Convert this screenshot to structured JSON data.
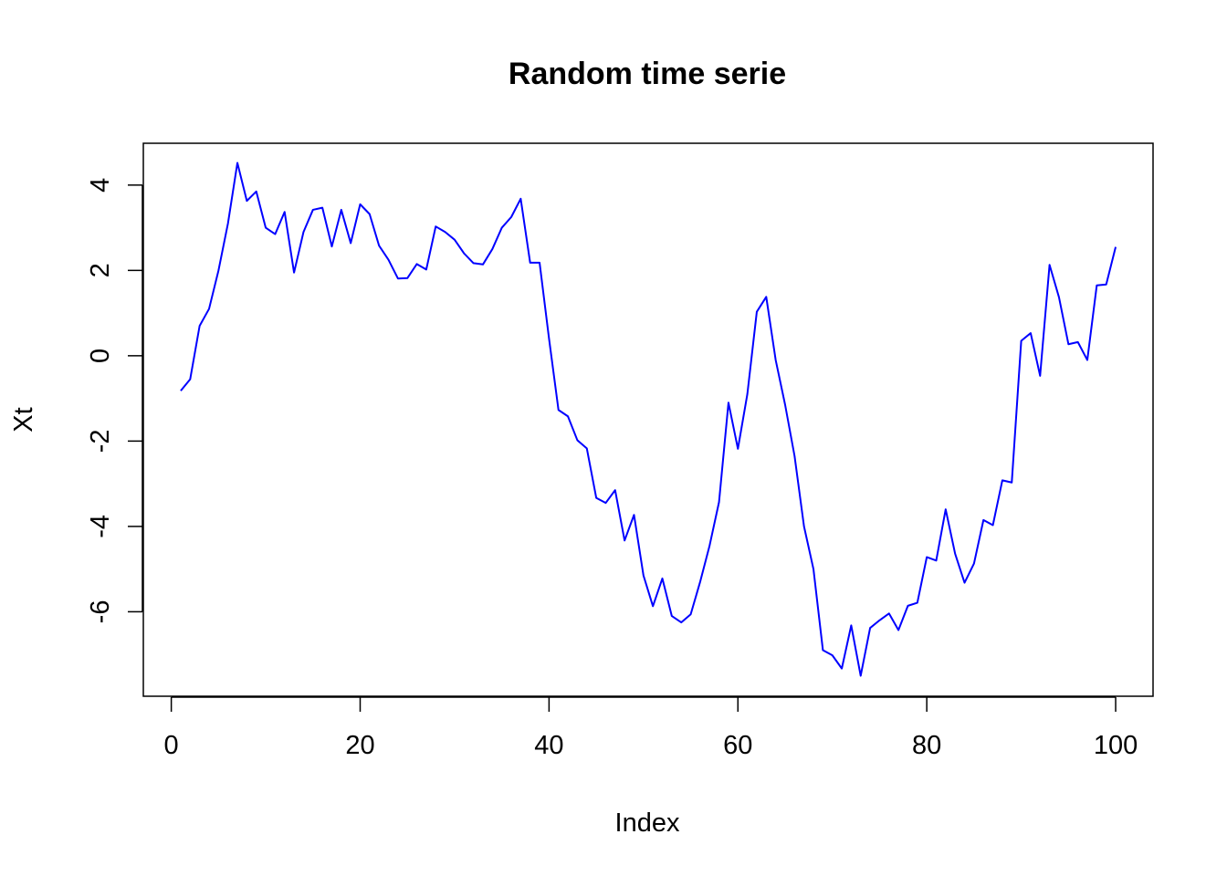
{
  "chart_data": {
    "type": "line",
    "title": "Random time serie",
    "xlabel": "Index",
    "ylabel": "Xt",
    "xlim": [
      1,
      100
    ],
    "ylim": [
      -7.5,
      4.5
    ],
    "x_ticks": [
      0,
      20,
      40,
      60,
      80,
      100
    ],
    "y_ticks": [
      -6,
      -4,
      -2,
      0,
      2,
      4
    ],
    "grid": false,
    "legend": "none",
    "series": [
      {
        "color": "#0000ff",
        "x": [
          1,
          2,
          3,
          4,
          5,
          6,
          7,
          8,
          9,
          10,
          11,
          12,
          13,
          14,
          15,
          16,
          17,
          18,
          19,
          20,
          21,
          22,
          23,
          24,
          25,
          26,
          27,
          28,
          29,
          30,
          31,
          32,
          33,
          34,
          35,
          36,
          37,
          38,
          39,
          40,
          41,
          42,
          43,
          44,
          45,
          46,
          47,
          48,
          49,
          50,
          51,
          52,
          53,
          54,
          55,
          56,
          57,
          58,
          59,
          60,
          61,
          62,
          63,
          64,
          65,
          66,
          67,
          68,
          69,
          70,
          71,
          72,
          73,
          74,
          75,
          76,
          77,
          78,
          79,
          80,
          81,
          82,
          83,
          84,
          85,
          86,
          87,
          88,
          89,
          90,
          91,
          92,
          93,
          94,
          95,
          96,
          97,
          98,
          99,
          100
        ],
        "values": [
          -0.82,
          -0.55,
          0.7,
          1.1,
          2.0,
          3.1,
          4.52,
          3.63,
          3.85,
          3.0,
          2.85,
          3.37,
          1.95,
          2.9,
          3.42,
          3.47,
          2.56,
          3.42,
          2.64,
          3.55,
          3.32,
          2.58,
          2.25,
          1.81,
          1.82,
          2.15,
          2.02,
          3.03,
          2.9,
          2.72,
          2.4,
          2.17,
          2.14,
          2.5,
          3.0,
          3.25,
          3.68,
          2.18,
          2.18,
          0.4,
          -1.27,
          -1.42,
          -1.98,
          -2.17,
          -3.33,
          -3.45,
          -3.15,
          -4.33,
          -3.73,
          -5.15,
          -5.87,
          -5.22,
          -6.1,
          -6.25,
          -6.06,
          -5.3,
          -4.45,
          -3.43,
          -1.1,
          -2.18,
          -0.9,
          1.03,
          1.38,
          -0.1,
          -1.15,
          -2.35,
          -4.0,
          -5.0,
          -6.9,
          -7.02,
          -7.33,
          -6.32,
          -7.5,
          -6.38,
          -6.2,
          -6.04,
          -6.43,
          -5.86,
          -5.79,
          -4.72,
          -4.8,
          -3.6,
          -4.64,
          -5.32,
          -4.87,
          -3.85,
          -3.97,
          -2.92,
          -2.97,
          0.35,
          0.53,
          -0.47,
          2.13,
          1.37,
          0.27,
          0.32,
          -0.1,
          1.65,
          1.67,
          2.55
        ]
      }
    ]
  }
}
